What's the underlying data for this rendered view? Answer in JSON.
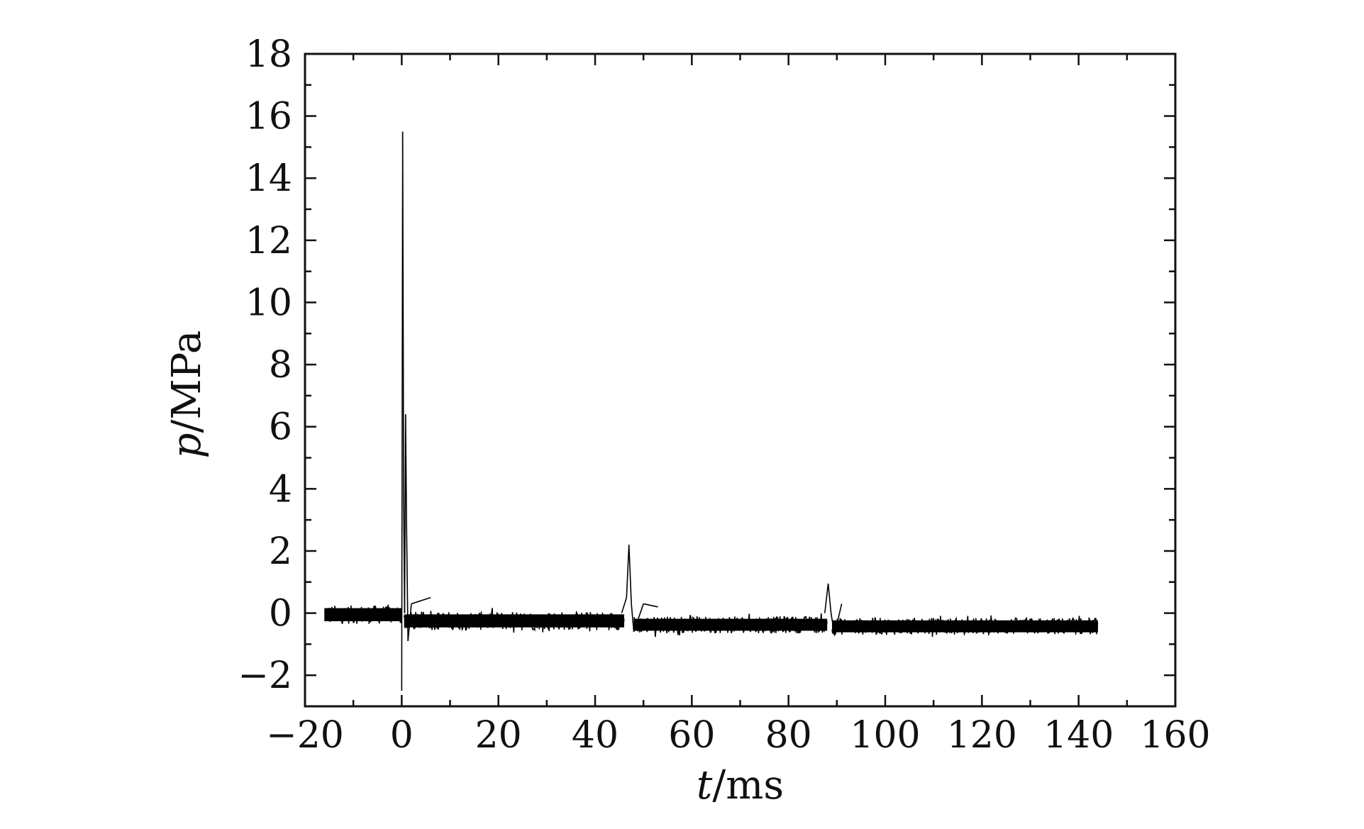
{
  "chart_data": {
    "type": "line",
    "xlabel": {
      "var": "t",
      "unit": "/ms"
    },
    "ylabel": {
      "var": "p",
      "unit": "/MPa"
    },
    "xlim": [
      -20,
      160
    ],
    "ylim": [
      -3,
      18
    ],
    "x_ticks": [
      -20,
      0,
      20,
      40,
      60,
      80,
      100,
      120,
      140,
      160
    ],
    "y_ticks": [
      -2,
      0,
      2,
      4,
      6,
      8,
      10,
      12,
      14,
      16,
      18
    ],
    "x_tick_labels": [
      "−20",
      "0",
      "20",
      "40",
      "60",
      "80",
      "100",
      "120",
      "140",
      "160"
    ],
    "y_tick_labels": [
      "−2",
      "0",
      "2",
      "4",
      "6",
      "8",
      "10",
      "12",
      "14",
      "16",
      "18"
    ],
    "grid": false,
    "legend": "none",
    "line_color": "#000000",
    "series": [
      {
        "noise_bands": [
          {
            "x_start": -16,
            "x_end": 0,
            "y_min": -0.35,
            "y_max": 0.25
          },
          {
            "x_start": 0.5,
            "x_end": 46,
            "y_min": -0.55,
            "y_max": 0.05
          },
          {
            "x_start": 48,
            "x_end": 88,
            "y_min": -0.65,
            "y_max": -0.1
          },
          {
            "x_start": 89,
            "x_end": 144,
            "y_min": -0.7,
            "y_max": -0.15
          }
        ],
        "events": [
          {
            "x": 0.0,
            "y": -2.5
          },
          {
            "x": 0.2,
            "y": 15.5
          },
          {
            "x": 0.4,
            "y": 3.7
          },
          {
            "x": 0.6,
            "y": 0.0
          },
          {
            "x": 0.8,
            "y": 6.4
          },
          {
            "x": 1.0,
            "y": 2.9
          },
          {
            "x": 1.3,
            "y": -0.9
          },
          {
            "x": 2.0,
            "y": 0.3
          },
          {
            "x": 6.0,
            "y": 0.5
          },
          {
            "x": 45.5,
            "y": 0.0
          },
          {
            "x": 46.5,
            "y": 0.5
          },
          {
            "x": 47.0,
            "y": 2.2
          },
          {
            "x": 47.5,
            "y": 0.3
          },
          {
            "x": 48.0,
            "y": -0.6
          },
          {
            "x": 50.0,
            "y": 0.3
          },
          {
            "x": 53.0,
            "y": 0.2
          },
          {
            "x": 87.5,
            "y": 0.0
          },
          {
            "x": 88.2,
            "y": 0.95
          },
          {
            "x": 88.8,
            "y": 0.0
          },
          {
            "x": 89.5,
            "y": -0.7
          },
          {
            "x": 91.0,
            "y": 0.3
          }
        ]
      }
    ]
  }
}
